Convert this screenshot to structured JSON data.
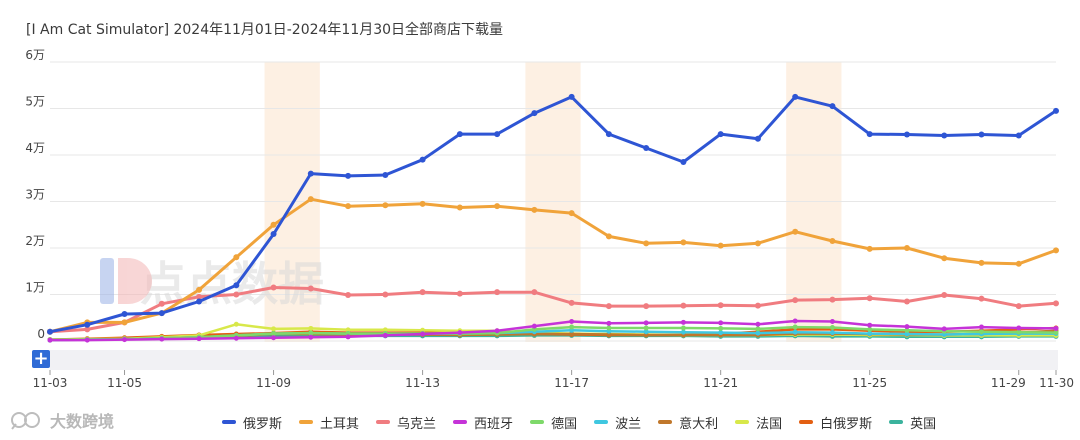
{
  "title": "[I Am Cat Simulator] 2024年11月01日-2024年11月30日全部商店下载量",
  "watermark_center": "点点数据",
  "watermark_logo": "大数跨境",
  "zoom_button": "+",
  "colors": {
    "grid": "#e7e7e7",
    "highlight": "#fdf0e3",
    "axis_text": "#444444",
    "scroll_track": "#f1f1f4"
  },
  "chart_data": {
    "type": "line",
    "x": [
      "11-03",
      "11-04",
      "11-05",
      "11-06",
      "11-07",
      "11-08",
      "11-09",
      "11-10",
      "11-11",
      "11-12",
      "11-13",
      "11-14",
      "11-15",
      "11-16",
      "11-17",
      "11-18",
      "11-19",
      "11-20",
      "11-21",
      "11-22",
      "11-23",
      "11-24",
      "11-25",
      "11-26",
      "11-27",
      "11-28",
      "11-29",
      "11-30"
    ],
    "x_tick_labels": [
      "11-03",
      "11-05",
      "11-09",
      "11-13",
      "11-17",
      "11-21",
      "11-25",
      "11-29",
      "11-30"
    ],
    "y_tick_labels": [
      "0",
      "1万",
      "2万",
      "3万",
      "4万",
      "5万",
      "6万"
    ],
    "ylim": [
      0,
      60000
    ],
    "highlight_ranges": [
      [
        "11-09",
        "11-10"
      ],
      [
        "11-16",
        "11-17"
      ],
      [
        "11-23",
        "11-24"
      ]
    ],
    "grid": true,
    "legend_position": "bottom",
    "series": [
      {
        "name": "俄罗斯",
        "color": "#2e55d4",
        "values": [
          2000,
          3500,
          5800,
          6000,
          8500,
          12000,
          23000,
          36000,
          35500,
          35700,
          39000,
          44500,
          44500,
          49000,
          52500,
          44500,
          41500,
          38500,
          44500,
          43500,
          52500,
          50500,
          44500,
          44400,
          44200,
          44400,
          44200,
          49500
        ]
      },
      {
        "name": "土耳其",
        "color": "#f0a33a",
        "values": [
          2000,
          4000,
          4000,
          6000,
          11000,
          18000,
          25000,
          30500,
          29000,
          29200,
          29500,
          28700,
          29000,
          28200,
          27500,
          22500,
          21000,
          21200,
          20500,
          21000,
          23500,
          21500,
          19800,
          20000,
          17800,
          16800,
          16600,
          19500
        ]
      },
      {
        "name": "乌克兰",
        "color": "#f07c80",
        "values": [
          2000,
          2500,
          4000,
          8000,
          9500,
          10000,
          11500,
          11300,
          9900,
          10000,
          10500,
          10200,
          10500,
          10500,
          8200,
          7500,
          7500,
          7600,
          7700,
          7600,
          8800,
          8900,
          9200,
          8500,
          9900,
          9100,
          7500,
          8100
        ]
      },
      {
        "name": "西班牙",
        "color": "#c533d8",
        "values": [
          200,
          200,
          300,
          400,
          500,
          600,
          700,
          800,
          900,
          1200,
          1500,
          1800,
          2200,
          3200,
          4200,
          3800,
          3900,
          4000,
          3900,
          3600,
          4300,
          4200,
          3400,
          3100,
          2600,
          3000,
          2800,
          2700
        ]
      },
      {
        "name": "德国",
        "color": "#7ed96a",
        "values": [
          300,
          300,
          400,
          600,
          800,
          1200,
          1600,
          1700,
          1600,
          1600,
          1600,
          1600,
          1700,
          2500,
          3000,
          2800,
          2800,
          2800,
          2700,
          2600,
          3000,
          2900,
          2500,
          2300,
          2100,
          2000,
          1900,
          1800
        ]
      },
      {
        "name": "波兰",
        "color": "#3fc7e0",
        "values": [
          200,
          300,
          400,
          600,
          800,
          1200,
          1600,
          1700,
          1600,
          1600,
          1600,
          1600,
          1700,
          2000,
          2300,
          2100,
          2000,
          1900,
          1800,
          1700,
          1900,
          1800,
          1600,
          1500,
          1400,
          1500,
          1600,
          1600
        ]
      },
      {
        "name": "意大利",
        "color": "#c0772b",
        "values": [
          200,
          300,
          400,
          600,
          800,
          1100,
          1500,
          1500,
          1400,
          1400,
          1400,
          1300,
          1400,
          1500,
          1500,
          1400,
          1300,
          1300,
          1300,
          1300,
          1600,
          1600,
          1500,
          1400,
          1400,
          1500,
          1800,
          2200
        ]
      },
      {
        "name": "法国",
        "color": "#d8e84a",
        "values": [
          300,
          400,
          500,
          800,
          1200,
          3600,
          2600,
          2700,
          2400,
          2400,
          2300,
          2200,
          2200,
          1800,
          1600,
          1500,
          1400,
          1300,
          1300,
          1300,
          1400,
          1400,
          1300,
          1300,
          1200,
          1200,
          1200,
          1200
        ]
      },
      {
        "name": "白俄罗斯",
        "color": "#e35f12",
        "values": [
          300,
          500,
          700,
          1000,
          1300,
          1500,
          1700,
          2000,
          1800,
          1800,
          1800,
          1700,
          1700,
          1500,
          1400,
          1300,
          1300,
          1300,
          1500,
          2000,
          2500,
          2500,
          2200,
          2000,
          2000,
          2200,
          2500,
          2800
        ]
      },
      {
        "name": "英国",
        "color": "#3bb39d",
        "values": [
          200,
          300,
          400,
          500,
          700,
          900,
          1100,
          1200,
          1100,
          1100,
          1100,
          1100,
          1100,
          1200,
          1200,
          1100,
          1100,
          1100,
          1000,
          1000,
          1100,
          1000,
          1000,
          900,
          900,
          900,
          1000,
          1000
        ]
      }
    ]
  }
}
